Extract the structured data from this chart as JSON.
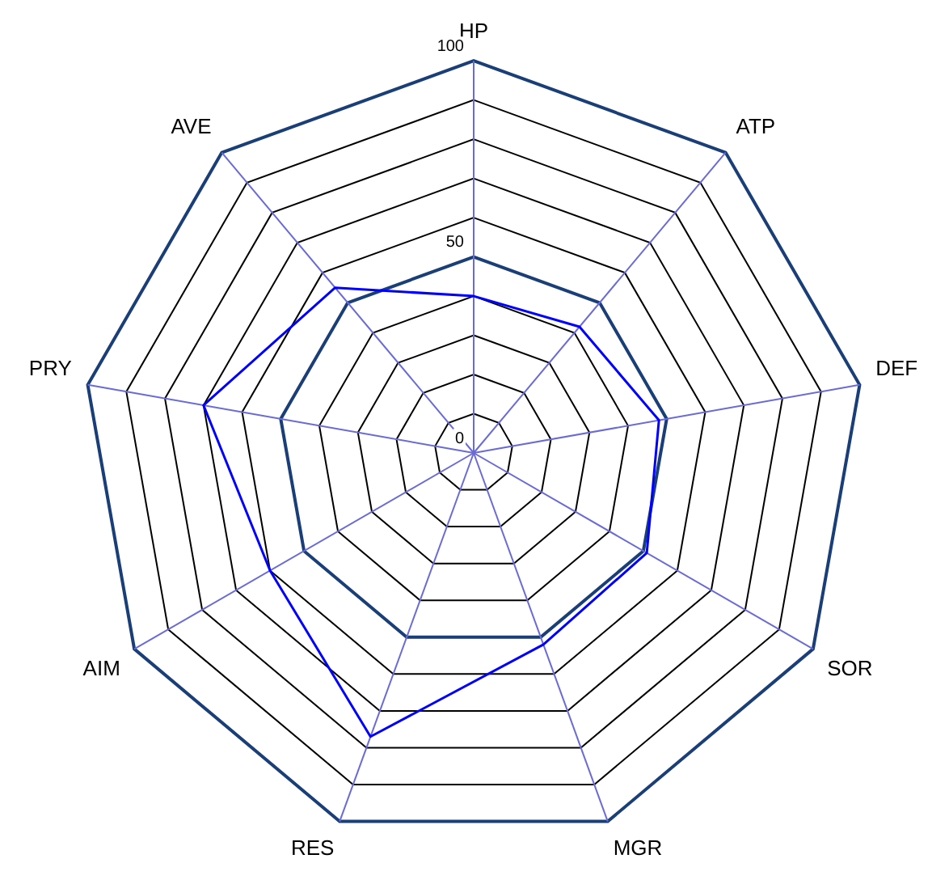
{
  "chart_data": {
    "type": "radar",
    "categories": [
      "HP",
      "ATP",
      "DEF",
      "SOR",
      "MGR",
      "RES",
      "AIM",
      "PRY",
      "AVE"
    ],
    "series": [
      {
        "color": "#0000ff",
        "values": [
          40,
          42,
          48,
          51,
          52,
          77,
          60,
          70,
          55
        ]
      }
    ],
    "ylim": [
      0,
      100
    ],
    "yticks": [
      0,
      50,
      100
    ],
    "grid": true,
    "legend": false,
    "marker": "none"
  }
}
